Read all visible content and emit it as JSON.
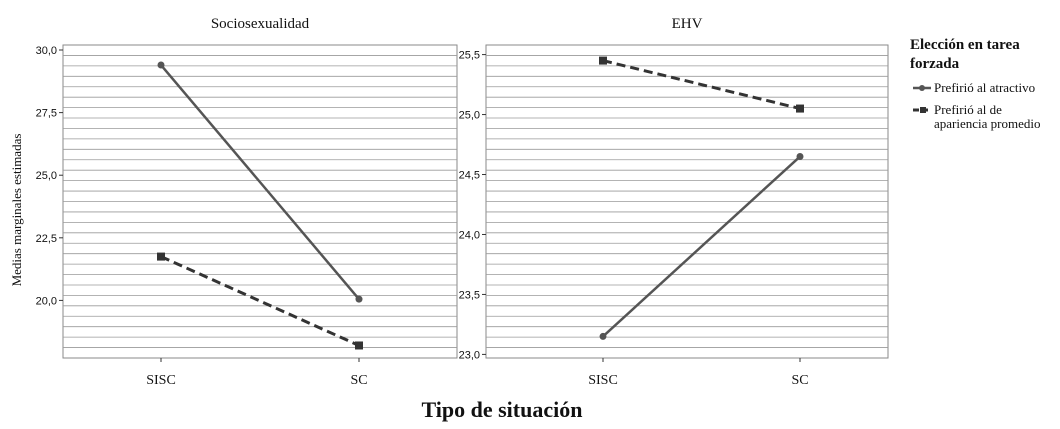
{
  "figure": {
    "shared_ylabel": "Medias marginales estimadas",
    "shared_xlabel": "Tipo de situación",
    "legend": {
      "title_line1": "Elección en tarea",
      "title_line2": "forzada",
      "entry1": "Prefirió al atractivo",
      "entry2_line1": "Prefirió al de",
      "entry2_line2": "apariencia promedio",
      "placement": "right"
    }
  },
  "chart_data": [
    {
      "type": "line",
      "title": "Sociosexualidad",
      "categories": [
        "SISC",
        "SC"
      ],
      "ylim": [
        17.7,
        30.2
      ],
      "yticks": [
        20.0,
        22.5,
        25.0,
        27.5,
        30.0
      ],
      "ytick_labels": [
        "20,0",
        "22,5",
        "25,0",
        "27,5",
        "30,0"
      ],
      "grid": true,
      "series": [
        {
          "name": "Prefirió al atractivo",
          "values": [
            29.4,
            20.05
          ],
          "style": "solid",
          "marker": "circle",
          "color": "#555555"
        },
        {
          "name": "Prefirió al de apariencia promedio",
          "values": [
            21.75,
            18.2
          ],
          "style": "dashed",
          "marker": "square",
          "color": "#333333"
        }
      ]
    },
    {
      "type": "line",
      "title": "EHV",
      "categories": [
        "SISC",
        "SC"
      ],
      "ylim": [
        22.97,
        25.58
      ],
      "yticks": [
        23.0,
        23.5,
        24.0,
        24.5,
        25.0,
        25.5
      ],
      "ytick_labels": [
        "23,0",
        "23,5",
        "24,0",
        "24,5",
        "25,0",
        "25,5"
      ],
      "grid": true,
      "series": [
        {
          "name": "Prefirió al atractivo",
          "values": [
            23.15,
            24.65
          ],
          "style": "solid",
          "marker": "circle",
          "color": "#555555"
        },
        {
          "name": "Prefirió al de apariencia promedio",
          "values": [
            25.45,
            25.05
          ],
          "style": "dashed",
          "marker": "square",
          "color": "#333333"
        }
      ]
    }
  ]
}
